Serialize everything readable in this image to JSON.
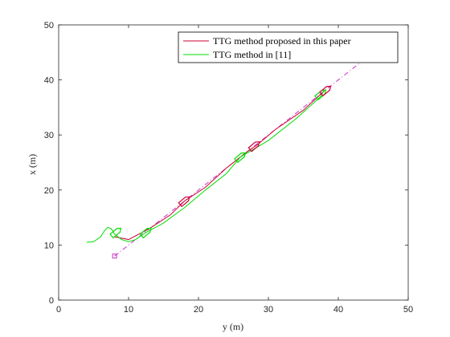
{
  "chart_data": {
    "type": "line",
    "xlabel": "y (m)",
    "ylabel": "x (m)",
    "xlim": [
      0,
      50
    ],
    "ylim": [
      0,
      50
    ],
    "xticks": [
      0,
      10,
      20,
      30,
      40,
      50
    ],
    "yticks": [
      0,
      10,
      20,
      30,
      40,
      50
    ],
    "grid": false,
    "legend_position": "top-right",
    "colors": {
      "proposed": "#cc0033",
      "ref": "#00dd00",
      "target": "#cc33cc"
    },
    "series": [
      {
        "name": "TTG method proposed in this paper",
        "color": "#cc0033",
        "x": [
          8,
          10,
          13,
          16,
          18,
          21,
          24,
          27,
          28.5,
          31,
          35,
          38
        ],
        "y": [
          11.5,
          11.0,
          13.0,
          15.5,
          18.0,
          20.5,
          24.0,
          27.0,
          28.3,
          31.0,
          34.5,
          38.0
        ]
      },
      {
        "name": "TTG method in [11]",
        "color": "#00dd00",
        "x": [
          4,
          5,
          6,
          6.5,
          7,
          7.5,
          8,
          8.5,
          9,
          10,
          11,
          12.5,
          15,
          18,
          21,
          24,
          26,
          30,
          34,
          37.5,
          38
        ],
        "y": [
          10.5,
          10.6,
          11.5,
          12.5,
          13.2,
          13.0,
          12.0,
          11.5,
          11.0,
          10.6,
          11.0,
          12.3,
          14.0,
          16.8,
          20.0,
          23.0,
          26.0,
          29.0,
          33.0,
          37.0,
          38.2
        ]
      }
    ],
    "target_line": {
      "start": [
        8,
        8
      ],
      "end": [
        43,
        43
      ]
    }
  }
}
